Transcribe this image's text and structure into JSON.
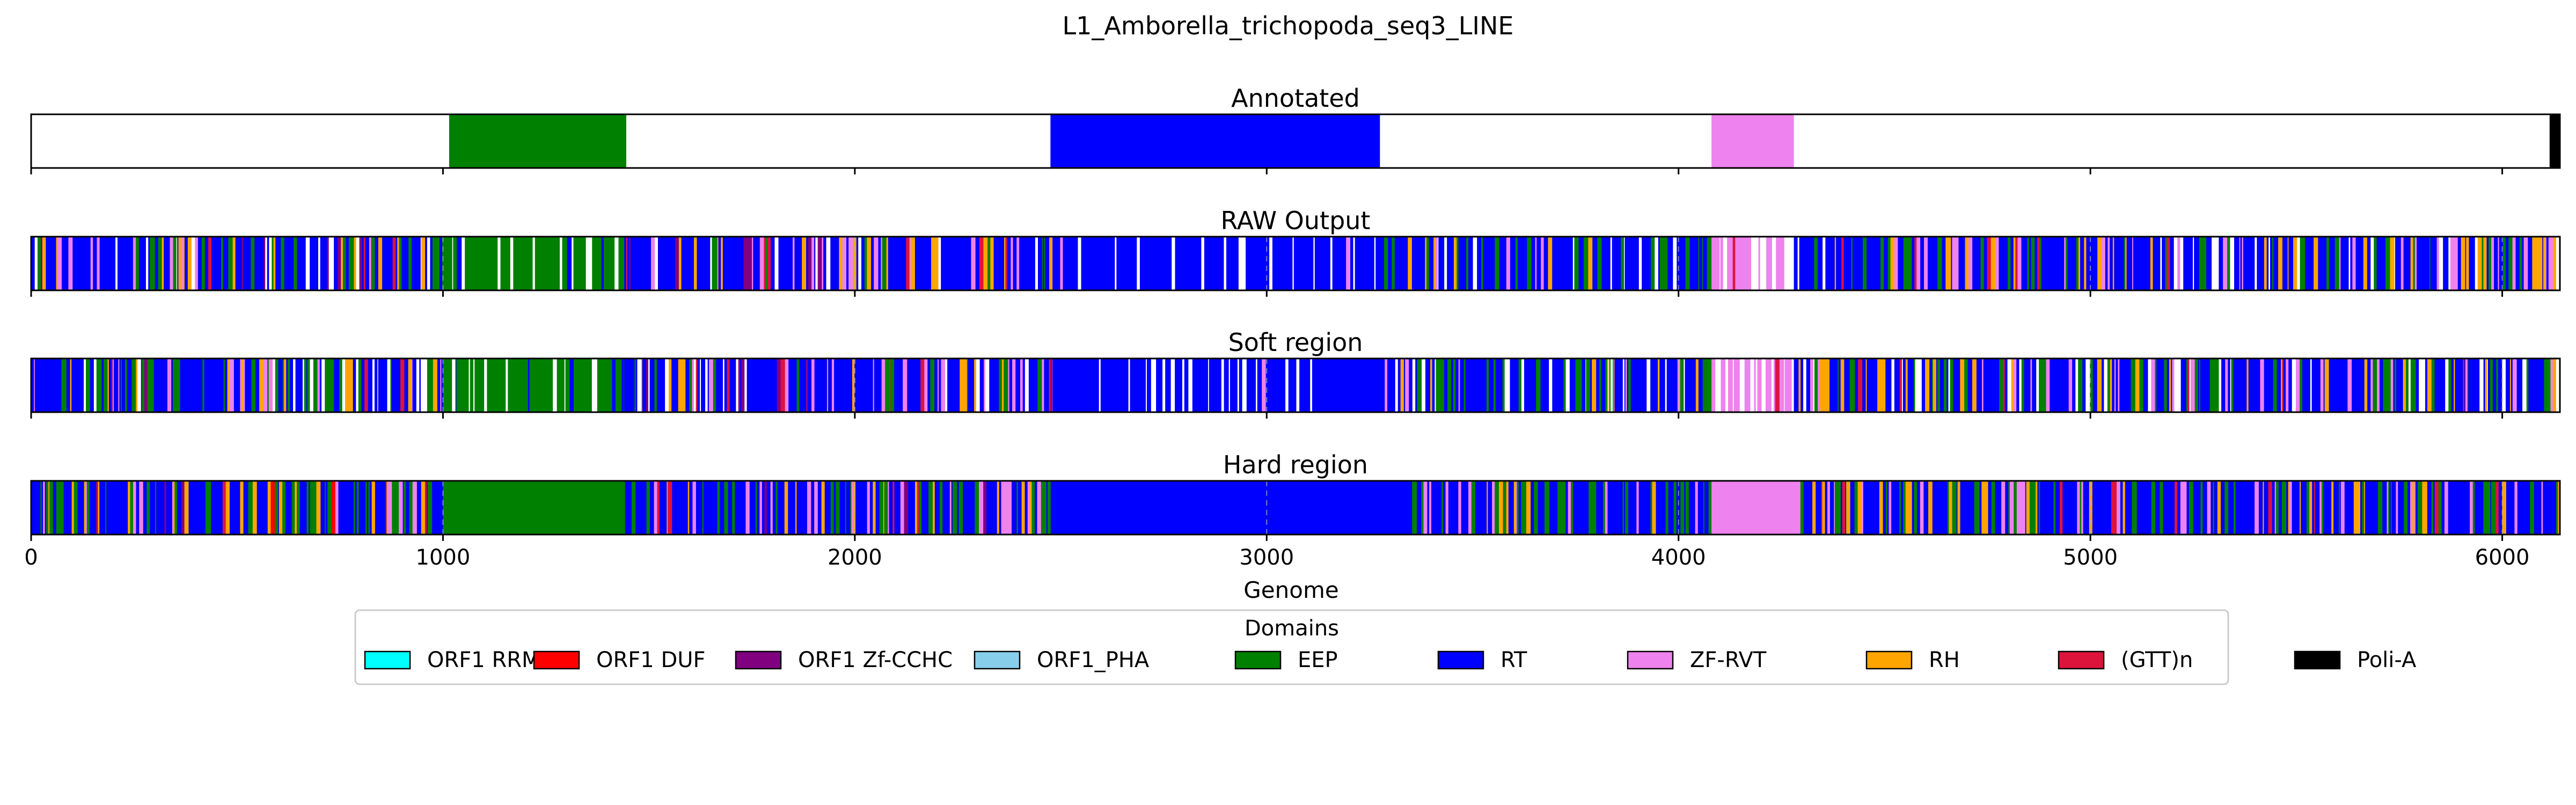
{
  "chart_data": {
    "type": "bar",
    "title": "L1_Amborella_trichopoda_seq3_LINE",
    "xlabel": "Genome",
    "xlim": [
      0,
      6140
    ],
    "xticks": [
      0,
      1000,
      2000,
      3000,
      4000,
      5000,
      6000
    ],
    "xticklabels": [
      "0",
      "1000",
      "2000",
      "3000",
      "4000",
      "5000",
      "6000"
    ],
    "legend": {
      "title": "Domains",
      "placement": "bottom-center",
      "entries": [
        {
          "label": "ORF1 RRM",
          "color": "#00ffff"
        },
        {
          "label": "ORF1 DUF",
          "color": "#ff0000"
        },
        {
          "label": "ORF1 Zf-CCHC",
          "color": "#800080"
        },
        {
          "label": "ORF1_PHA",
          "color": "#87ceeb"
        },
        {
          "label": "EEP",
          "color": "#008000"
        },
        {
          "label": "RT",
          "color": "#0000ff"
        },
        {
          "label": "ZF-RVT",
          "color": "#ee82ee"
        },
        {
          "label": "RH",
          "color": "#ffa500"
        },
        {
          "label": "(GTT)n",
          "color": "#dc143c"
        },
        {
          "label": "Poli-A",
          "color": "#000000"
        }
      ]
    },
    "panels": [
      {
        "name": "Annotated",
        "mode": "segments",
        "segments": [
          {
            "domain": "EEP",
            "start": 1015,
            "end": 1445
          },
          {
            "domain": "RT",
            "start": 2475,
            "end": 3275
          },
          {
            "domain": "ZF-RVT",
            "start": 4080,
            "end": 4280
          },
          {
            "domain": "Poli-A",
            "start": 6115,
            "end": 6140
          }
        ]
      },
      {
        "name": "RAW Output",
        "mode": "stripes",
        "regions": [
          {
            "start": 0,
            "end": 1000,
            "mix": {
              "RT": 0.58,
              "EEP": 0.18,
              "RH": 0.07,
              "ZF-RVT": 0.05,
              "ORF1 Zf-CCHC": 0.02,
              "(GTT)n": 0.02,
              "none": 0.08
            }
          },
          {
            "start": 1000,
            "end": 1440,
            "mix": {
              "EEP": 0.78,
              "RT": 0.05,
              "none": 0.17
            }
          },
          {
            "start": 1440,
            "end": 2480,
            "mix": {
              "RT": 0.6,
              "ZF-RVT": 0.12,
              "RH": 0.08,
              "ORF1 Zf-CCHC": 0.04,
              "(GTT)n": 0.03,
              "EEP": 0.05,
              "none": 0.08
            }
          },
          {
            "start": 2480,
            "end": 3280,
            "mix": {
              "RT": 0.82,
              "ZF-RVT": 0.03,
              "none": 0.15
            }
          },
          {
            "start": 3280,
            "end": 4080,
            "mix": {
              "RT": 0.6,
              "EEP": 0.2,
              "RH": 0.06,
              "ZF-RVT": 0.05,
              "none": 0.09
            }
          },
          {
            "start": 4080,
            "end": 4280,
            "mix": {
              "ZF-RVT": 0.55,
              "(GTT)n": 0.04,
              "none": 0.41
            }
          },
          {
            "start": 4280,
            "end": 6130,
            "mix": {
              "RT": 0.55,
              "EEP": 0.16,
              "ZF-RVT": 0.1,
              "RH": 0.08,
              "(GTT)n": 0.03,
              "none": 0.08
            }
          }
        ]
      },
      {
        "name": "Soft region",
        "mode": "stripes",
        "regions": [
          {
            "start": 0,
            "end": 1000,
            "mix": {
              "RT": 0.58,
              "EEP": 0.18,
              "RH": 0.07,
              "ZF-RVT": 0.05,
              "ORF1 Zf-CCHC": 0.02,
              "(GTT)n": 0.02,
              "none": 0.08
            }
          },
          {
            "start": 1000,
            "end": 1440,
            "mix": {
              "EEP": 0.78,
              "RT": 0.05,
              "none": 0.17
            }
          },
          {
            "start": 1440,
            "end": 2480,
            "mix": {
              "RT": 0.6,
              "ZF-RVT": 0.12,
              "RH": 0.08,
              "ORF1 Zf-CCHC": 0.04,
              "(GTT)n": 0.03,
              "EEP": 0.05,
              "none": 0.08
            }
          },
          {
            "start": 2480,
            "end": 3280,
            "mix": {
              "RT": 0.82,
              "ZF-RVT": 0.03,
              "none": 0.15
            }
          },
          {
            "start": 3280,
            "end": 4080,
            "mix": {
              "RT": 0.6,
              "EEP": 0.2,
              "RH": 0.06,
              "ZF-RVT": 0.05,
              "none": 0.09
            }
          },
          {
            "start": 4080,
            "end": 4280,
            "mix": {
              "ZF-RVT": 0.55,
              "(GTT)n": 0.04,
              "none": 0.41
            }
          },
          {
            "start": 4280,
            "end": 6130,
            "mix": {
              "RT": 0.55,
              "EEP": 0.16,
              "ZF-RVT": 0.1,
              "RH": 0.08,
              "(GTT)n": 0.03,
              "none": 0.08
            }
          }
        ]
      },
      {
        "name": "Hard region",
        "mode": "stripes",
        "regions": [
          {
            "start": 0,
            "end": 1000,
            "mix": {
              "RT": 0.55,
              "EEP": 0.24,
              "RH": 0.08,
              "ZF-RVT": 0.06,
              "ORF1 DUF": 0.02,
              "(GTT)n": 0.02,
              "ORF1 Zf-CCHC": 0.03
            }
          },
          {
            "start": 1000,
            "end": 1440,
            "mix": {
              "EEP": 1.0
            }
          },
          {
            "start": 1440,
            "end": 2480,
            "mix": {
              "RT": 0.58,
              "EEP": 0.14,
              "ZF-RVT": 0.12,
              "RH": 0.1,
              "ORF1 Zf-CCHC": 0.03,
              "(GTT)n": 0.03
            }
          },
          {
            "start": 2480,
            "end": 3280,
            "mix": {
              "RT": 1.0
            }
          },
          {
            "start": 3280,
            "end": 4080,
            "mix": {
              "RT": 0.58,
              "EEP": 0.24,
              "RH": 0.09,
              "ZF-RVT": 0.09
            }
          },
          {
            "start": 4080,
            "end": 4280,
            "mix": {
              "ZF-RVT": 1.0
            }
          },
          {
            "start": 4280,
            "end": 6140,
            "mix": {
              "RT": 0.55,
              "EEP": 0.2,
              "ZF-RVT": 0.12,
              "RH": 0.1,
              "(GTT)n": 0.03
            }
          }
        ]
      }
    ]
  }
}
